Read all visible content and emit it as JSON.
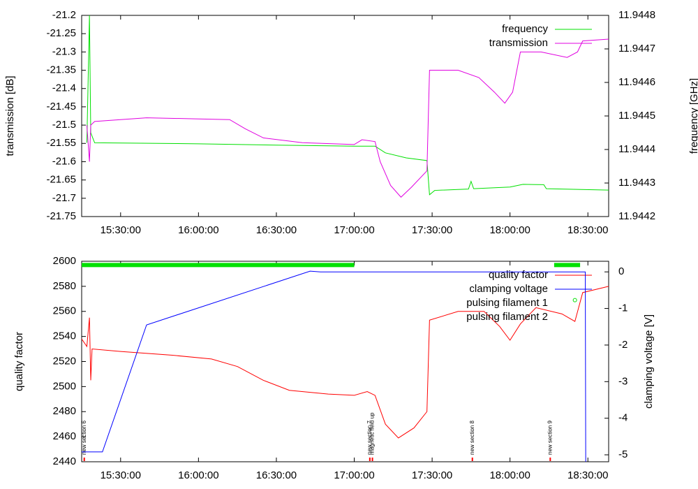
{
  "chart_data": [
    {
      "type": "line",
      "ylabel": "transmission [dB]",
      "y2label": "frequency [GHz]",
      "xlim": [
        "15:15:00",
        "18:38:00"
      ],
      "xticks": [
        "15:30:00",
        "16:00:00",
        "16:30:00",
        "17:00:00",
        "17:30:00",
        "18:00:00",
        "18:30:00"
      ],
      "ylim": [
        -21.75,
        -21.2
      ],
      "yticks": [
        -21.2,
        -21.25,
        -21.3,
        -21.35,
        -21.4,
        -21.45,
        -21.5,
        -21.55,
        -21.6,
        -21.65,
        -21.7,
        -21.75
      ],
      "y2lim": [
        11.9442,
        11.9448
      ],
      "y2ticks": [
        11.9448,
        11.9447,
        11.9446,
        11.9445,
        11.9444,
        11.9443,
        11.9442
      ],
      "legend": "upper right",
      "series": [
        {
          "name": "frequency",
          "color": "#00e000",
          "axis": "y2",
          "x": [
            "15:17:00",
            "15:18:00",
            "15:18:30",
            "15:20:00",
            "16:00:00",
            "16:30:00",
            "17:00:00",
            "17:08:00",
            "17:12:00",
            "17:20:00",
            "17:28:00",
            "17:29:00",
            "17:31:00",
            "17:44:00",
            "17:45:00",
            "17:46:00",
            "18:00:00",
            "18:05:00",
            "18:13:00",
            "18:14:00",
            "18:38:00"
          ],
          "values": [
            11.94442,
            11.9448,
            11.94445,
            11.94442,
            11.944417,
            11.944413,
            11.94441,
            11.94441,
            11.94439,
            11.944375,
            11.944367,
            11.944265,
            11.944278,
            11.944282,
            11.944305,
            11.944283,
            11.944288,
            11.944296,
            11.944295,
            11.944283,
            11.944279
          ]
        },
        {
          "name": "transmission",
          "color": "#e000e0",
          "x": [
            "15:17:00",
            "15:18:00",
            "15:18:30",
            "15:20:00",
            "15:40:00",
            "16:00:00",
            "16:12:00",
            "16:18:00",
            "16:25:00",
            "16:40:00",
            "17:00:00",
            "17:03:00",
            "17:08:00",
            "17:10:00",
            "17:14:00",
            "17:18:00",
            "17:22:00",
            "17:28:00",
            "17:29:00",
            "17:40:00",
            "17:48:00",
            "17:54:00",
            "17:58:00",
            "18:01:00",
            "18:04:00",
            "18:12:00",
            "18:22:00",
            "18:26:00",
            "18:28:00",
            "18:38:00"
          ],
          "values": [
            -21.5,
            -21.6,
            -21.5,
            -21.49,
            -21.48,
            -21.483,
            -21.485,
            -21.51,
            -21.535,
            -21.548,
            -21.553,
            -21.54,
            -21.545,
            -21.6,
            -21.665,
            -21.697,
            -21.67,
            -21.625,
            -21.35,
            -21.35,
            -21.37,
            -21.41,
            -21.44,
            -21.41,
            -21.3,
            -21.3,
            -21.315,
            -21.3,
            -21.27,
            -21.265
          ]
        }
      ]
    },
    {
      "type": "line",
      "ylabel": "quality factor",
      "y2label": "clamping voltage [V]",
      "xlim": [
        "15:15:00",
        "18:38:00"
      ],
      "xticks": [
        "15:30:00",
        "16:00:00",
        "16:30:00",
        "17:00:00",
        "17:30:00",
        "18:00:00",
        "18:30:00"
      ],
      "ylim": [
        2440,
        2600
      ],
      "yticks": [
        2600,
        2580,
        2560,
        2540,
        2520,
        2500,
        2480,
        2460,
        2440
      ],
      "y2lim": [
        -5.19,
        0.29
      ],
      "y2ticks": [
        0,
        -1,
        -2,
        -3,
        -4,
        -5
      ],
      "legend": "upper right",
      "series": [
        {
          "name": "quality factor",
          "color": "#ff0000",
          "x": [
            "15:15:00",
            "15:17:00",
            "15:18:00",
            "15:18:30",
            "15:19:00",
            "15:30:00",
            "15:50:00",
            "16:05:00",
            "16:15:00",
            "16:25:00",
            "16:35:00",
            "16:50:00",
            "17:00:00",
            "17:05:00",
            "17:08:00",
            "17:12:00",
            "17:17:00",
            "17:23:00",
            "17:28:00",
            "17:29:00",
            "17:40:00",
            "17:50:00",
            "17:56:00",
            "18:00:00",
            "18:04:00",
            "18:10:00",
            "18:20:00",
            "18:25:00",
            "18:28:00",
            "18:38:00"
          ],
          "values": [
            2538,
            2532,
            2555,
            2505,
            2530,
            2528,
            2525,
            2522,
            2516,
            2505,
            2497,
            2494,
            2493,
            2496,
            2493,
            2470,
            2459,
            2467,
            2480,
            2553,
            2560,
            2560,
            2548,
            2537,
            2550,
            2563,
            2558,
            2552,
            2575,
            2580
          ]
        },
        {
          "name": "clamping voltage",
          "color": "#0000ff",
          "axis": "y2",
          "x": [
            "15:15:00",
            "15:23:00",
            "15:40:00",
            "16:43:00",
            "16:47:00",
            "18:29:00",
            "18:29:10"
          ],
          "values": [
            -4.92,
            -4.92,
            -1.45,
            0.02,
            0,
            0,
            -5.19
          ]
        },
        {
          "name": "pulsing filament 1",
          "color": "#00e000",
          "linewidth": 6,
          "x": [
            "15:15:00",
            "17:00:00",
            "17:00:30",
            "18:17:00",
            "18:27:00"
          ],
          "values": [
            2597,
            2597,
            null,
            2597,
            2597
          ]
        },
        {
          "name": "pulsing filament 2",
          "color": "#00e000",
          "style": "points",
          "x": [
            "18:25:00"
          ],
          "values": [
            2569
          ]
        }
      ],
      "annotations": [
        {
          "x": "15:16:00",
          "text": "new section 6"
        },
        {
          "x": "17:06:00",
          "text": "new section 7"
        },
        {
          "x": "17:07:00",
          "text": "magnetic field up"
        },
        {
          "x": "17:45:30",
          "text": "new section 8"
        },
        {
          "x": "18:15:30",
          "text": "new section 9"
        }
      ]
    }
  ]
}
